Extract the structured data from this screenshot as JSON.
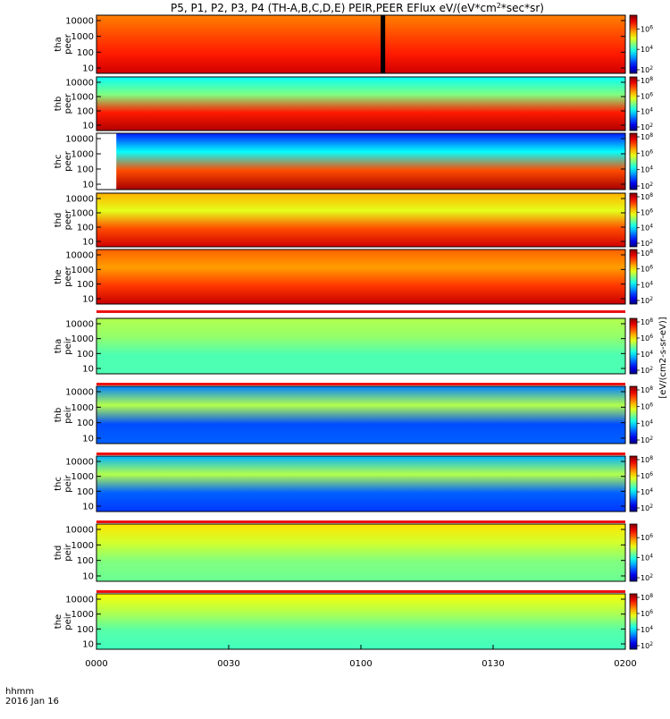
{
  "chart_data": {
    "type": "heatmap",
    "title": "P5, P1, P2, P3, P4 (TH-A,B,C,D,E) PEIR,PEER EFlux eV/(eV*cm²*sec*sr)",
    "title_parts": {
      "base": "P5, P1, P2, P3, P4 (TH-A,B,C,D,E) PEIR,PEER EFlux eV/(eV*cm",
      "sup": "2",
      "tail": "*sec*sr)"
    },
    "x_axis": {
      "tick_labels": [
        "0000",
        "0030",
        "0100",
        "0130",
        "0200"
      ],
      "unit_label": "hhmm",
      "date_label": "2016 Jan 16",
      "range_minutes": [
        0,
        120
      ]
    },
    "colorbar_label": "[eV/(cm2-s-sr-eV)]",
    "panels": [
      {
        "probe": "tha",
        "instrument": "peer",
        "y_ticks": [
          "10000",
          "1000",
          "100",
          "10"
        ],
        "cb_exp_min": 2,
        "cb_exp_max": 7,
        "gap_start_min": null,
        "gap_end_min": null,
        "dropout_min": 65
      },
      {
        "probe": "thb",
        "instrument": "peer",
        "y_ticks": [
          "10000",
          "1000",
          "100",
          "10"
        ],
        "cb_exp_min": 2,
        "cb_exp_max": 8,
        "gap_start_min": null,
        "gap_end_min": null,
        "dropout_min": null
      },
      {
        "probe": "thc",
        "instrument": "peer",
        "y_ticks": [
          "10000",
          "1000",
          "100",
          "10"
        ],
        "cb_exp_min": 2,
        "cb_exp_max": 8,
        "gap_start_min": 0,
        "gap_end_min": 4.5,
        "dropout_min": null
      },
      {
        "probe": "thd",
        "instrument": "peer",
        "y_ticks": [
          "10000",
          "1000",
          "100",
          "10"
        ],
        "cb_exp_min": 2,
        "cb_exp_max": 8,
        "gap_start_min": null,
        "gap_end_min": null,
        "dropout_min": null
      },
      {
        "probe": "the",
        "instrument": "peer",
        "y_ticks": [
          "10000",
          "1000",
          "100",
          "10"
        ],
        "cb_exp_min": 2,
        "cb_exp_max": 8,
        "gap_start_min": null,
        "gap_end_min": null,
        "dropout_min": null
      },
      {
        "probe": "tha",
        "instrument": "peir",
        "y_ticks": [
          "10000",
          "1000",
          "100",
          "10"
        ],
        "cb_exp_min": 2,
        "cb_exp_max": 8,
        "gap_start_min": null,
        "gap_end_min": null,
        "dropout_min": null
      },
      {
        "probe": "thb",
        "instrument": "peir",
        "y_ticks": [
          "10000",
          "1000",
          "100",
          "10"
        ],
        "cb_exp_min": 2,
        "cb_exp_max": 8,
        "gap_start_min": null,
        "gap_end_min": null,
        "dropout_min": null
      },
      {
        "probe": "thc",
        "instrument": "peir",
        "y_ticks": [
          "10000",
          "1000",
          "100",
          "10"
        ],
        "cb_exp_min": 2,
        "cb_exp_max": 8,
        "gap_start_min": null,
        "gap_end_min": null,
        "dropout_min": null
      },
      {
        "probe": "thd",
        "instrument": "peir",
        "y_ticks": [
          "10000",
          "1000",
          "100",
          "10"
        ],
        "cb_exp_min": 2,
        "cb_exp_max": 7,
        "gap_start_min": null,
        "gap_end_min": null,
        "dropout_min": null
      },
      {
        "probe": "the",
        "instrument": "peir",
        "y_ticks": [
          "10000",
          "1000",
          "100",
          "10"
        ],
        "cb_exp_min": 2,
        "cb_exp_max": 8,
        "gap_start_min": null,
        "gap_end_min": null,
        "dropout_min": null
      }
    ]
  }
}
